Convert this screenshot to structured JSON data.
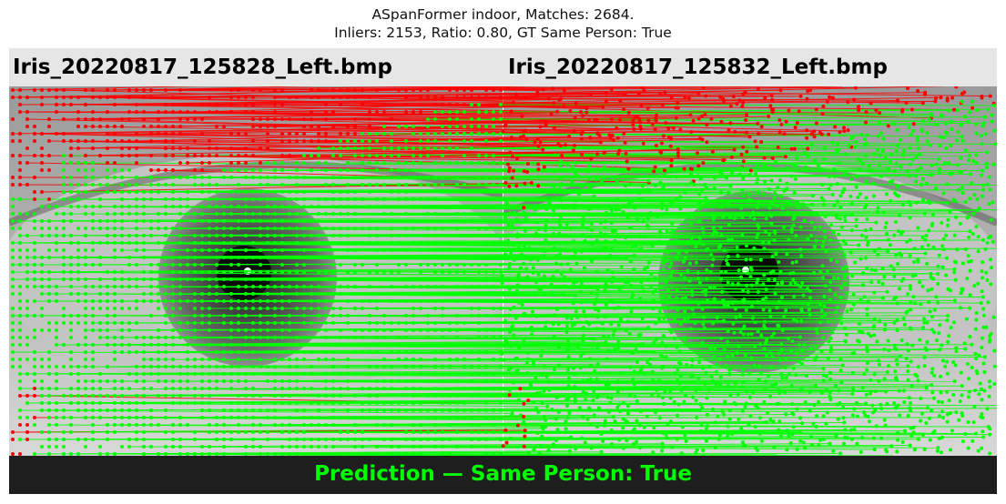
{
  "figure": {
    "title_line1": "ASpanFormer indoor, Matches: 2684.",
    "title_line2": "Inliers: 2153, Ratio: 0.80, GT Same Person: True"
  },
  "images": {
    "left_filename": "Iris_20220817_125828_Left.bmp",
    "right_filename": "Iris_20220817_125832_Left.bmp"
  },
  "footer": {
    "prediction_text": "Prediction — Same Person: True"
  },
  "colors": {
    "inlier": "#00ff00",
    "outlier": "#ff0000",
    "header_bg": "#e6e6e6",
    "footer_bg": "#1e1e1e"
  },
  "matches": {
    "total": 2684,
    "inliers": 2153,
    "ratio": 0.8
  }
}
